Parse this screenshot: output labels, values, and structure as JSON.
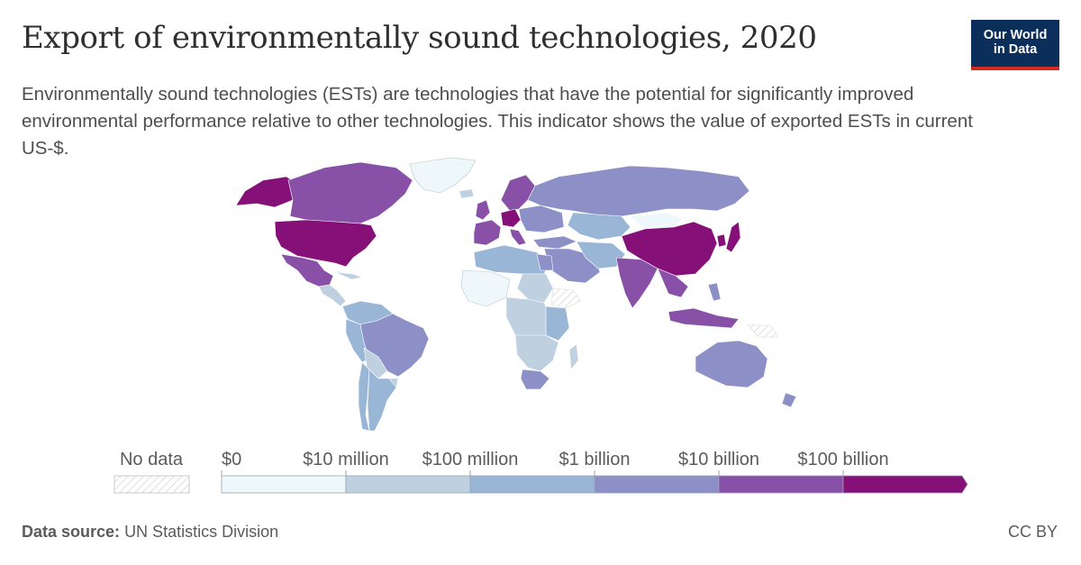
{
  "title": "Export of environmentally sound technologies, 2020",
  "subtitle": "Environmentally sound technologies (ESTs) are technologies that have the potential for significantly improved environmental performance relative to other technologies. This indicator shows the value of exported ESTs in current US-$.",
  "logo": {
    "line1": "Our World",
    "line2": "in Data",
    "bg": "#0b2e5b",
    "accent": "#d42b21"
  },
  "legend": {
    "no_data_label": "No data",
    "bins": [
      {
        "label": "$0",
        "color": "#eef7fa"
      },
      {
        "label": "$10 million",
        "color": "#bfd0e0"
      },
      {
        "label": "$100 million",
        "color": "#9ab6d7"
      },
      {
        "label": "$1 billion",
        "color": "#8c90c6"
      },
      {
        "label": "$10 billion",
        "color": "#8950a8"
      },
      {
        "label": "$100 billion",
        "color": "#851178"
      }
    ]
  },
  "footer": {
    "source_label": "Data source:",
    "source": "UN Statistics Division",
    "license": "CC BY"
  }
}
